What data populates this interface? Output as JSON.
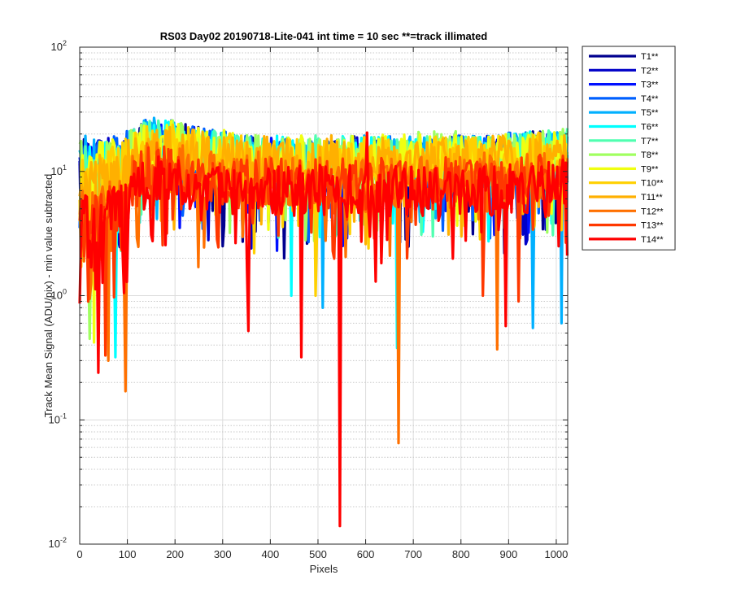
{
  "chart_data": {
    "type": "line",
    "title": "RS03 Day02 20190718-Lite-041 int time = 10 sec    **=track illimated",
    "xlabel": "Pixels",
    "ylabel": "Track Mean Signal (ADU/pix) - min value subtracted",
    "xlim": [
      0,
      1024
    ],
    "ylim": [
      0.01,
      100
    ],
    "yscale": "log",
    "grid": true,
    "minor_grid": true,
    "legend_position": "outside-top-right",
    "x_ticks": [
      0,
      100,
      200,
      300,
      400,
      500,
      600,
      700,
      800,
      900,
      1000
    ],
    "y_ticks": [
      {
        "value": 0.01,
        "base": "10",
        "exp": "-2"
      },
      {
        "value": 0.1,
        "base": "10",
        "exp": "-1"
      },
      {
        "value": 1,
        "base": "10",
        "exp": "0"
      },
      {
        "value": 10,
        "base": "10",
        "exp": "1"
      },
      {
        "value": 100,
        "base": "10",
        "exp": "2"
      }
    ],
    "x": [
      0,
      25,
      50,
      75,
      100,
      125,
      150,
      175,
      200,
      225,
      250,
      275,
      300,
      325,
      350,
      375,
      400,
      425,
      450,
      475,
      500,
      525,
      550,
      575,
      600,
      625,
      650,
      675,
      700,
      725,
      750,
      775,
      800,
      825,
      850,
      875,
      900,
      925,
      950,
      975,
      1000,
      1023
    ],
    "series": [
      {
        "name": "T1**",
        "color": "#00008f",
        "baseline": [
          12,
          11,
          11,
          12,
          12,
          15,
          17,
          16,
          15,
          15,
          14,
          13,
          13,
          12,
          12,
          12,
          12,
          11,
          11,
          11,
          11,
          11,
          11,
          12,
          12,
          12,
          11,
          11,
          11,
          11,
          11,
          11,
          12,
          12,
          12,
          12,
          12,
          12,
          13,
          13,
          13,
          13
        ],
        "dips": [
          [
            300,
            2.5
          ],
          [
            430,
            2.0
          ],
          [
            890,
            2.2
          ]
        ]
      },
      {
        "name": "T2**",
        "color": "#0000c8",
        "baseline": [
          12,
          11,
          12,
          12,
          13,
          15,
          17,
          16,
          15,
          15,
          14,
          13,
          13,
          12,
          12,
          12,
          12,
          11,
          11,
          11,
          11,
          11,
          11,
          12,
          12,
          12,
          11,
          11,
          11,
          11,
          11,
          12,
          12,
          12,
          12,
          12,
          12,
          12,
          13,
          13,
          13,
          13
        ],
        "dips": [
          [
            270,
            2.8
          ],
          [
            360,
            2.4
          ],
          [
            935,
            2.6
          ]
        ]
      },
      {
        "name": "T3**",
        "color": "#0010ff",
        "baseline": [
          12,
          12,
          12,
          12,
          13,
          15,
          17,
          16,
          16,
          15,
          14,
          14,
          13,
          12,
          12,
          12,
          12,
          12,
          11,
          11,
          11,
          11,
          11,
          12,
          12,
          12,
          11,
          11,
          11,
          11,
          12,
          12,
          12,
          12,
          12,
          12,
          12,
          13,
          13,
          13,
          13,
          13
        ],
        "dips": [
          [
            415,
            2.3
          ],
          [
            560,
            2.9
          ]
        ]
      },
      {
        "name": "T4**",
        "color": "#0060ff",
        "baseline": [
          12,
          12,
          12,
          13,
          13,
          16,
          17,
          16,
          16,
          15,
          14,
          14,
          13,
          13,
          12,
          12,
          12,
          12,
          11,
          11,
          11,
          11,
          12,
          12,
          12,
          12,
          12,
          11,
          11,
          12,
          12,
          12,
          12,
          12,
          12,
          12,
          13,
          13,
          13,
          13,
          13,
          13
        ],
        "dips": [
          [
            480,
            2.7
          ],
          [
            860,
            2.9
          ]
        ]
      },
      {
        "name": "T5**",
        "color": "#00b0ff",
        "baseline": [
          12,
          12,
          12,
          13,
          13,
          16,
          17,
          16,
          16,
          15,
          15,
          14,
          13,
          13,
          12,
          12,
          12,
          12,
          12,
          11,
          11,
          12,
          12,
          12,
          12,
          12,
          12,
          12,
          12,
          12,
          12,
          12,
          12,
          12,
          12,
          13,
          13,
          13,
          13,
          13,
          13,
          13
        ],
        "dips": [
          [
            510,
            0.8
          ],
          [
            950,
            0.55
          ],
          [
            1010,
            0.6
          ]
        ]
      },
      {
        "name": "T6**",
        "color": "#00ffff",
        "baseline": [
          11,
          11,
          11,
          12,
          12,
          15,
          16,
          16,
          15,
          15,
          14,
          13,
          13,
          12,
          12,
          12,
          12,
          12,
          11,
          11,
          11,
          11,
          12,
          12,
          12,
          12,
          12,
          12,
          12,
          12,
          12,
          12,
          12,
          12,
          12,
          12,
          12,
          13,
          13,
          13,
          13,
          13
        ],
        "dips": [
          [
            445,
            1.0
          ],
          [
            665,
            0.38
          ],
          [
            75,
            0.32
          ]
        ]
      },
      {
        "name": "T7**",
        "color": "#50ffb0",
        "baseline": [
          11,
          11,
          11,
          12,
          13,
          15,
          16,
          16,
          16,
          15,
          14,
          14,
          13,
          13,
          12,
          12,
          12,
          12,
          12,
          12,
          12,
          12,
          12,
          12,
          12,
          12,
          12,
          12,
          12,
          12,
          12,
          12,
          12,
          12,
          12,
          12,
          13,
          13,
          13,
          13,
          14,
          14
        ],
        "dips": [
          [
            130,
            4.5
          ],
          [
            740,
            3.0
          ]
        ]
      },
      {
        "name": "T8**",
        "color": "#a0ff60",
        "baseline": [
          11,
          10,
          11,
          12,
          13,
          15,
          16,
          16,
          16,
          15,
          15,
          14,
          13,
          13,
          13,
          12,
          12,
          12,
          12,
          12,
          12,
          12,
          12,
          12,
          12,
          12,
          12,
          13,
          13,
          13,
          13,
          13,
          13,
          13,
          13,
          13,
          13,
          13,
          13,
          14,
          14,
          14
        ],
        "dips": [
          [
            20,
            0.45
          ],
          [
            315,
            3.2
          ]
        ]
      },
      {
        "name": "T9**",
        "color": "#f0ff10",
        "baseline": [
          10,
          10,
          11,
          12,
          13,
          15,
          16,
          16,
          16,
          15,
          15,
          14,
          14,
          13,
          13,
          13,
          12,
          12,
          12,
          12,
          12,
          12,
          12,
          12,
          12,
          13,
          13,
          13,
          13,
          13,
          13,
          13,
          13,
          13,
          13,
          13,
          13,
          13,
          13,
          14,
          14,
          14
        ],
        "dips": [
          [
            30,
            0.42
          ],
          [
            395,
            3.4
          ]
        ]
      },
      {
        "name": "T10**",
        "color": "#ffd000",
        "baseline": [
          9,
          9,
          10,
          11,
          12,
          14,
          15,
          15,
          15,
          14,
          14,
          13,
          13,
          13,
          12,
          12,
          12,
          12,
          12,
          12,
          12,
          12,
          12,
          12,
          12,
          12,
          12,
          12,
          12,
          12,
          12,
          12,
          12,
          12,
          12,
          12,
          12,
          12,
          13,
          13,
          13,
          13
        ],
        "dips": [
          [
            495,
            1.0
          ],
          [
            365,
            2.2
          ],
          [
            605,
            2.4
          ]
        ]
      },
      {
        "name": "T11**",
        "color": "#ffb000",
        "baseline": [
          9,
          8,
          9,
          10,
          11,
          13,
          15,
          15,
          14,
          14,
          13,
          13,
          12,
          12,
          12,
          12,
          12,
          12,
          12,
          12,
          12,
          12,
          12,
          12,
          12,
          12,
          12,
          12,
          12,
          12,
          12,
          12,
          12,
          12,
          12,
          12,
          12,
          12,
          12,
          13,
          13,
          13
        ],
        "dips": [
          [
            600,
            2.6
          ],
          [
            800,
            3.0
          ]
        ]
      },
      {
        "name": "T12**",
        "color": "#ff7000",
        "baseline": [
          6,
          5,
          5,
          6,
          7,
          10,
          11,
          11,
          10,
          10,
          9,
          9,
          9,
          9,
          9,
          9,
          9,
          8,
          8,
          8,
          8,
          8,
          8,
          8,
          8,
          8,
          8,
          8,
          9,
          9,
          9,
          9,
          9,
          9,
          9,
          9,
          9,
          9,
          9,
          9,
          9,
          9
        ],
        "dips": [
          [
            97,
            0.17
          ],
          [
            60,
            0.3
          ],
          [
            670,
            0.065
          ],
          [
            875,
            0.37
          ],
          [
            250,
            1.7
          ]
        ]
      },
      {
        "name": "T13**",
        "color": "#ff3800",
        "baseline": [
          5,
          5,
          5,
          5,
          6,
          9,
          10,
          10,
          10,
          9,
          9,
          9,
          8,
          8,
          8,
          8,
          8,
          8,
          8,
          8,
          8,
          8,
          8,
          8,
          8,
          8,
          8,
          8,
          8,
          8,
          8,
          8,
          8,
          8,
          8,
          8,
          8,
          8,
          8,
          9,
          9,
          9
        ],
        "dips": [
          [
            55,
            0.33
          ],
          [
            845,
            1.0
          ],
          [
            920,
            0.9
          ]
        ]
      },
      {
        "name": "T14**",
        "color": "#ff0000",
        "baseline": [
          4,
          4,
          4,
          5,
          6,
          8,
          9,
          9,
          9,
          8,
          8,
          8,
          7,
          7,
          7,
          7,
          7,
          7,
          7,
          7,
          7,
          7,
          7,
          7,
          7,
          7,
          7,
          7,
          7,
          7,
          7,
          7,
          7,
          7,
          7,
          7,
          7,
          7,
          7,
          8,
          8,
          8
        ],
        "dips": [
          [
            40,
            0.24
          ],
          [
            355,
            0.52
          ],
          [
            465,
            0.32
          ],
          [
            545,
            0.014
          ],
          [
            620,
            1.3
          ],
          [
            893,
            0.57
          ],
          [
            1005,
            2.5
          ]
        ],
        "spikes": [
          [
            604,
            20.5
          ]
        ]
      }
    ]
  }
}
